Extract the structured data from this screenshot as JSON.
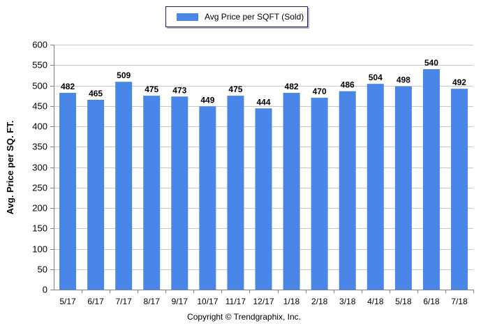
{
  "legend": {
    "label": "Avg Price per SQFT (Sold)"
  },
  "copyright": "Copyright © Trendgraphix, Inc.",
  "colors": {
    "bar": "#4a86e8",
    "grid": "#c8c8c8",
    "axis": "#808080",
    "text": "#000000"
  },
  "chart_data": {
    "type": "bar",
    "title": "",
    "xlabel": "",
    "ylabel": "Avg. Price per SQ. FT.",
    "categories": [
      "5/17",
      "6/17",
      "7/17",
      "8/17",
      "9/17",
      "10/17",
      "11/17",
      "12/17",
      "1/18",
      "2/18",
      "3/18",
      "4/18",
      "5/18",
      "6/18",
      "7/18"
    ],
    "series": [
      {
        "name": "Avg Price per SQFT (Sold)",
        "values": [
          482,
          465,
          509,
          475,
          473,
          449,
          475,
          444,
          482,
          470,
          486,
          504,
          498,
          540,
          492
        ]
      }
    ],
    "ylim": [
      0,
      600
    ],
    "yticks": [
      0,
      50,
      100,
      150,
      200,
      250,
      300,
      350,
      400,
      450,
      500,
      550,
      600
    ],
    "grid": true,
    "legend_position": "top-center",
    "data_labels": true
  }
}
